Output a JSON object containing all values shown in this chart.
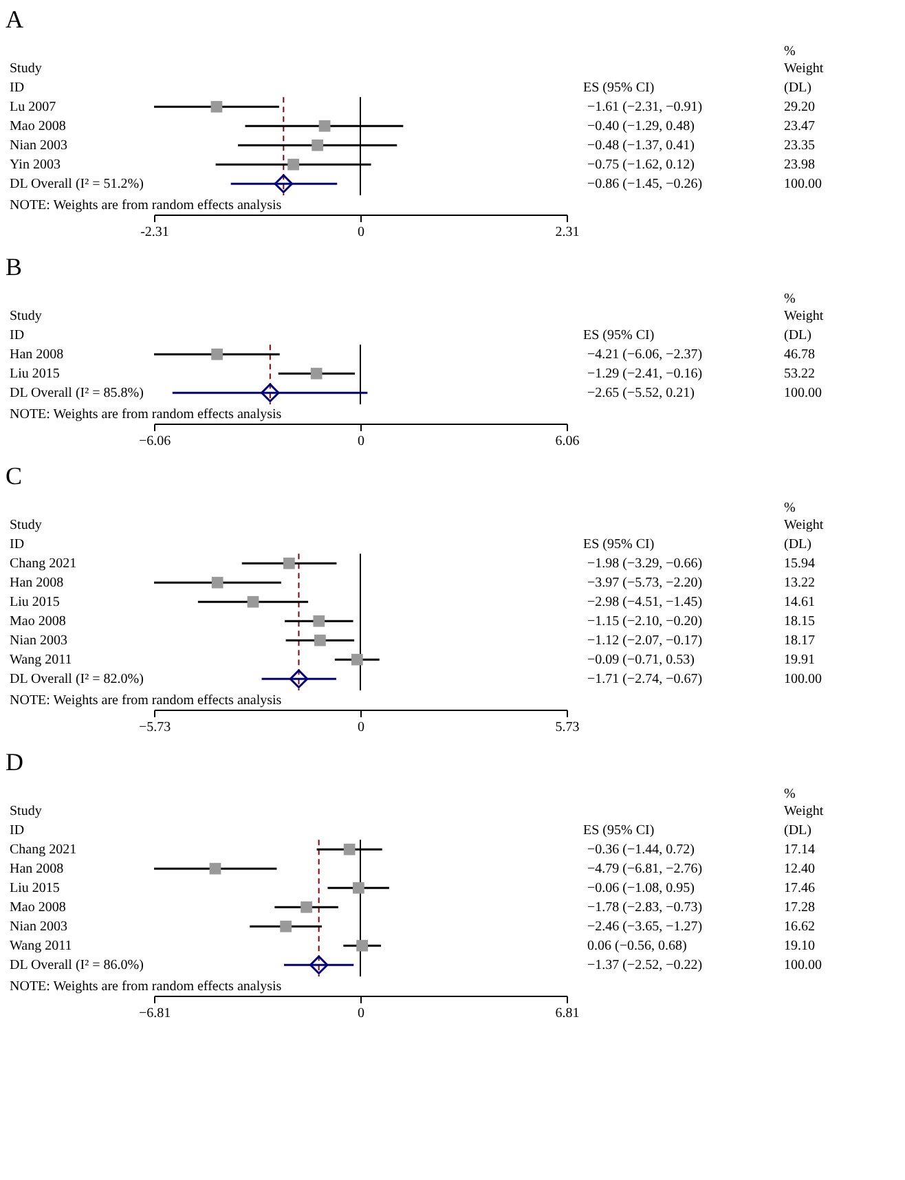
{
  "chart_data": [
    {
      "type": "scatter",
      "title": "A",
      "orientation": "horizontal",
      "categories": [
        "Lu 2007",
        "Mao 2008",
        "Nian 2003",
        "Yin 2003",
        "DL Overall  (I² = 51.2%)"
      ],
      "series": [
        {
          "marker": "square",
          "color": "#999999",
          "values": [
            -1.61,
            -0.4,
            -0.48,
            -0.75,
            null
          ],
          "errors": [
            [
              -2.31,
              -0.91
            ],
            [
              -1.29,
              0.48
            ],
            [
              -1.37,
              0.41
            ],
            [
              -1.62,
              0.12
            ],
            null
          ]
        },
        {
          "marker": "diamond",
          "color": "#000080",
          "values": [
            null,
            null,
            null,
            null,
            -0.86
          ],
          "errors": [
            null,
            null,
            null,
            null,
            [
              -1.45,
              -0.26
            ]
          ]
        }
      ],
      "value_labels": [
        "−1.61 (−2.31, −0.91)",
        "−0.40 (−1.29, 0.48)",
        "−0.48 (−1.37, 0.41)",
        "−0.75 (−1.62, 0.12)",
        "−0.86 (−1.45, −0.26)"
      ],
      "xlim": [
        -2.31,
        2.31
      ],
      "xticks": [
        {
          "value": -2.31,
          "label": "-2.31"
        },
        0,
        2.31
      ],
      "ref_lines": [
        {
          "axis": "x",
          "value": 0,
          "color": "#000000"
        },
        {
          "axis": "x",
          "value": -0.86,
          "color": "#8b0000",
          "line_style": "dashed"
        }
      ],
      "annotations": [
        "Study",
        "ID",
        "ES (95% CI)",
        "%",
        "Weight",
        "(DL)",
        "NOTE: Weights are from random effects analysis",
        "29.20",
        "23.47",
        "23.35",
        "23.98",
        "100.00"
      ]
    },
    {
      "type": "scatter",
      "title": "B",
      "orientation": "horizontal",
      "categories": [
        "Han 2008",
        "Liu 2015",
        "DL Overall  (I² = 85.8%)"
      ],
      "series": [
        {
          "marker": "square",
          "color": "#999999",
          "values": [
            -4.21,
            -1.29,
            null
          ],
          "errors": [
            [
              -6.06,
              -2.37
            ],
            [
              -2.41,
              -0.16
            ],
            null
          ]
        },
        {
          "marker": "diamond",
          "color": "#000080",
          "values": [
            null,
            null,
            -2.65
          ],
          "errors": [
            null,
            null,
            [
              -5.52,
              0.21
            ]
          ]
        }
      ],
      "value_labels": [
        "−4.21 (−6.06, −2.37)",
        "−1.29 (−2.41, −0.16)",
        "−2.65 (−5.52, 0.21)"
      ],
      "xlim": [
        -6.06,
        6.06
      ],
      "xticks": [
        {
          "value": -6.06,
          "label": "−6.06"
        },
        0,
        6.06
      ],
      "ref_lines": [
        {
          "axis": "x",
          "value": 0,
          "color": "#000000"
        },
        {
          "axis": "x",
          "value": -2.65,
          "color": "#8b0000",
          "line_style": "dashed"
        }
      ],
      "annotations": [
        "Study",
        "ID",
        "ES (95% CI)",
        "%",
        "Weight",
        "(DL)",
        "NOTE: Weights are from random effects analysis",
        "46.78",
        "53.22",
        "100.00"
      ]
    },
    {
      "type": "scatter",
      "title": "C",
      "orientation": "horizontal",
      "categories": [
        "Chang 2021",
        "Han 2008",
        "Liu 2015",
        "Mao 2008",
        "Nian 2003",
        "Wang 2011",
        "DL Overall  (I² = 82.0%)"
      ],
      "series": [
        {
          "marker": "square",
          "color": "#999999",
          "values": [
            -1.98,
            -3.97,
            -2.98,
            -1.15,
            -1.12,
            -0.09,
            null
          ],
          "errors": [
            [
              -3.29,
              -0.66
            ],
            [
              -5.73,
              -2.2
            ],
            [
              -4.51,
              -1.45
            ],
            [
              -2.1,
              -0.2
            ],
            [
              -2.07,
              -0.17
            ],
            [
              -0.71,
              0.53
            ],
            null
          ]
        },
        {
          "marker": "diamond",
          "color": "#000080",
          "values": [
            null,
            null,
            null,
            null,
            null,
            null,
            -1.71
          ],
          "errors": [
            null,
            null,
            null,
            null,
            null,
            null,
            [
              -2.74,
              -0.67
            ]
          ]
        }
      ],
      "value_labels": [
        "−1.98 (−3.29, −0.66)",
        "−3.97 (−5.73, −2.20)",
        "−2.98 (−4.51, −1.45)",
        "−1.15 (−2.10, −0.20)",
        "−1.12 (−2.07, −0.17)",
        "−0.09 (−0.71, 0.53)",
        "−1.71 (−2.74, −0.67)"
      ],
      "xlim": [
        -5.73,
        5.73
      ],
      "xticks": [
        {
          "value": -5.73,
          "label": "−5.73"
        },
        0,
        5.73
      ],
      "ref_lines": [
        {
          "axis": "x",
          "value": 0,
          "color": "#000000"
        },
        {
          "axis": "x",
          "value": -1.71,
          "color": "#8b0000",
          "line_style": "dashed"
        }
      ],
      "annotations": [
        "Study",
        "ID",
        "ES (95% CI)",
        "%",
        "Weight",
        "(DL)",
        "NOTE: Weights are from random effects analysis",
        "15.94",
        "13.22",
        "14.61",
        "18.15",
        "18.17",
        "19.91",
        "100.00"
      ]
    },
    {
      "type": "scatter",
      "title": "D",
      "orientation": "horizontal",
      "categories": [
        "Chang 2021",
        "Han 2008",
        "Liu 2015",
        "Mao 2008",
        "Nian 2003",
        "Wang 2011",
        "DL Overall  (I² = 86.0%)"
      ],
      "series": [
        {
          "marker": "square",
          "color": "#999999",
          "values": [
            -0.36,
            -4.79,
            -0.06,
            -1.78,
            -2.46,
            0.06,
            null
          ],
          "errors": [
            [
              -1.44,
              0.72
            ],
            [
              -6.81,
              -2.76
            ],
            [
              -1.08,
              0.95
            ],
            [
              -2.83,
              -0.73
            ],
            [
              -3.65,
              -1.27
            ],
            [
              -0.56,
              0.68
            ],
            null
          ]
        },
        {
          "marker": "diamond",
          "color": "#000080",
          "values": [
            null,
            null,
            null,
            null,
            null,
            null,
            -1.37
          ],
          "errors": [
            null,
            null,
            null,
            null,
            null,
            null,
            [
              -2.52,
              -0.22
            ]
          ]
        }
      ],
      "value_labels": [
        "−0.36 (−1.44, 0.72)",
        "−4.79 (−6.81, −2.76)",
        "−0.06 (−1.08, 0.95)",
        "−1.78 (−2.83, −0.73)",
        "−2.46 (−3.65, −1.27)",
        "0.06 (−0.56, 0.68)",
        "−1.37 (−2.52, −0.22)"
      ],
      "xlim": [
        -6.81,
        6.81
      ],
      "xticks": [
        {
          "value": -6.81,
          "label": "−6.81"
        },
        0,
        6.81
      ],
      "ref_lines": [
        {
          "axis": "x",
          "value": 0,
          "color": "#000000"
        },
        {
          "axis": "x",
          "value": -1.37,
          "color": "#8b0000",
          "line_style": "dashed"
        }
      ],
      "annotations": [
        "Study",
        "ID",
        "ES (95% CI)",
        "%",
        "Weight",
        "(DL)",
        "NOTE: Weights are from random effects analysis",
        "17.14",
        "12.40",
        "17.46",
        "17.28",
        "16.62",
        "19.10",
        "100.00"
      ]
    }
  ]
}
